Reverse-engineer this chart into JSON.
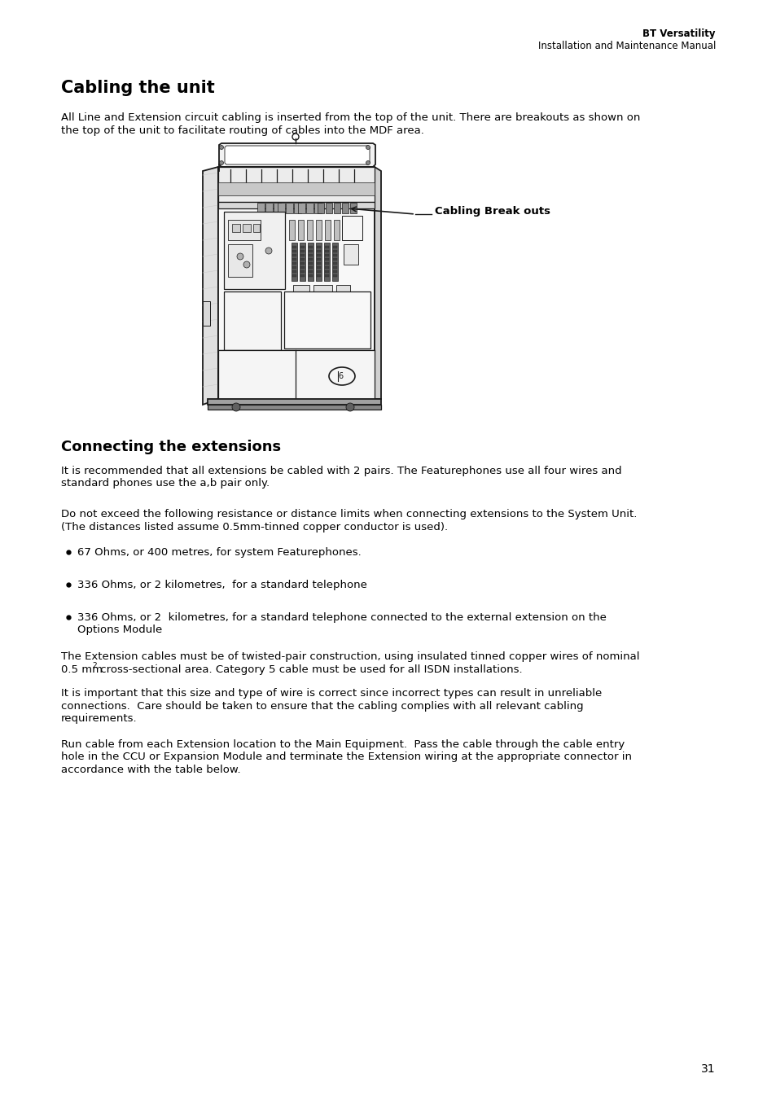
{
  "bg_color": "#ffffff",
  "header_right_line1": "BT Versatility",
  "header_right_line2": "Installation and Maintenance Manual",
  "title": "Cabling the unit",
  "intro_text_l1": "All Line and Extension circuit cabling is inserted from the top of the unit. There are breakouts as shown on",
  "intro_text_l2": "the top of the unit to facilitate routing of cables into the MDF area.",
  "callout_label": "Cabling Break outs",
  "section2_title": "Connecting the extensions",
  "s2p1l1": "It is recommended that all extensions be cabled with 2 pairs. The Featurephones use all four wires and",
  "s2p1l2": "standard phones use the a,b pair only.",
  "s2p2l1": "Do not exceed the following resistance or distance limits when connecting extensions to the System Unit.",
  "s2p2l2": "(The distances listed assume 0.5mm-tinned copper conductor is used).",
  "bullet1": "67 Ohms, or 400 metres, for system Featurephones.",
  "bullet2": "336 Ohms, or 2 kilometres,  for a standard telephone",
  "bullet3l1": "336 Ohms, or 2  kilometres, for a standard telephone connected to the external extension on the",
  "bullet3l2": "Options Module",
  "p3l1": "The Extension cables must be of twisted-pair construction, using insulated tinned copper wires of nominal",
  "p3l2pre": "0.5 mm",
  "p3l2sup": "2",
  "p3l2post": " cross-sectional area. Category 5 cable must be used for all ISDN installations.",
  "p4l1": "It is important that this size and type of wire is correct since incorrect types can result in unreliable",
  "p4l2": "connections.  Care should be taken to ensure that the cabling complies with all relevant cabling",
  "p4l3": "requirements.",
  "p5l1": "Run cable from each Extension location to the Main Equipment.  Pass the cable through the cable entry",
  "p5l2": "hole in the CCU or Expansion Module and terminate the Extension wiring at the appropriate connector in",
  "p5l3": "accordance with the table below.",
  "page_number": "31"
}
